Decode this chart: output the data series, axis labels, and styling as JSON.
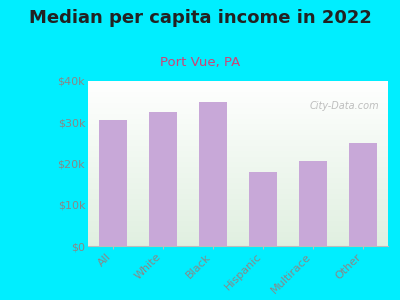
{
  "title": "Median per capita income in 2022",
  "subtitle": "Port Vue, PA",
  "categories": [
    "All",
    "White",
    "Black",
    "Hispanic",
    "Multirace",
    "Other"
  ],
  "values": [
    30500,
    32500,
    35000,
    18000,
    20500,
    25000
  ],
  "bar_color": "#c8a8d8",
  "background_outer": "#00eeff",
  "title_color": "#222222",
  "subtitle_color": "#cc4477",
  "tick_label_color": "#888888",
  "ylim": [
    0,
    40000
  ],
  "yticks": [
    0,
    10000,
    20000,
    30000,
    40000
  ],
  "ytick_labels": [
    "$0",
    "$10k",
    "$20k",
    "$30k",
    "$40k"
  ],
  "watermark": "City-Data.com",
  "title_fontsize": 13,
  "subtitle_fontsize": 9.5
}
